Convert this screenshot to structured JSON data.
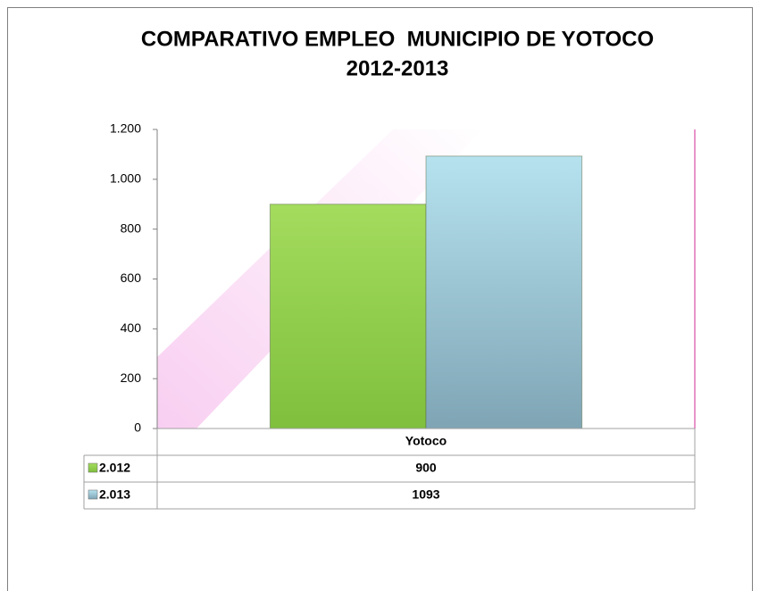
{
  "chart_data": {
    "type": "bar",
    "title": [
      "COMPARATIVO EMPLEO  MUNICIPIO DE YOTOCO",
      "2012-2013"
    ],
    "categories": [
      "Yotoco"
    ],
    "series": [
      {
        "name": "2.012",
        "color": "#92d050",
        "values": [
          900
        ]
      },
      {
        "name": "2.013",
        "color": "#93c5d6",
        "values": [
          1093
        ]
      }
    ],
    "ylim": [
      0,
      1200
    ],
    "yticks": [
      0,
      200,
      400,
      600,
      800,
      {
        "value": 1000,
        "label": "1.000"
      },
      {
        "value": 1200,
        "label": "1.200"
      }
    ],
    "data_table": true
  }
}
